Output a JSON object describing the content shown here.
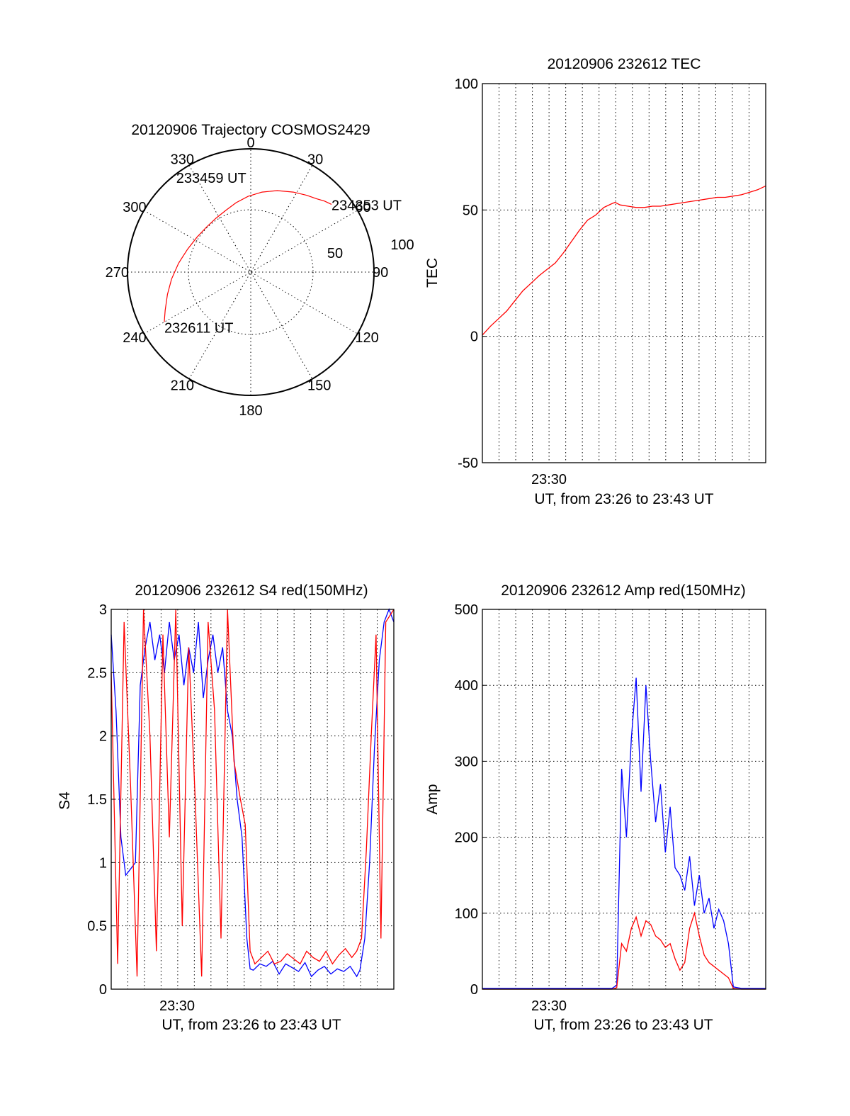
{
  "chart_data": [
    {
      "id": "polar",
      "type": "scatter",
      "title": "20120906 Trajectory COSMOS2429",
      "azimuth_ticks": [
        "0",
        "30",
        "60",
        "90",
        "120",
        "150",
        "180",
        "210",
        "240",
        "270",
        "300",
        "330"
      ],
      "elevation_ring_labels": [
        "50",
        "100"
      ],
      "rlim": [
        0,
        100
      ],
      "series": [
        {
          "color": "#ff0000",
          "azimuth_deg": [
            240.0,
            246.0,
            255.0,
            265.0,
            277.0,
            290.0,
            303.0,
            315.0,
            327.0,
            338.0,
            348.0,
            358.0,
            8.0,
            18.0,
            28.0,
            36.0,
            42.0,
            46.0,
            50.0
          ],
          "radius": [
            81.0,
            76.0,
            70.0,
            64.5,
            59.0,
            54.5,
            52.0,
            51.2,
            52.0,
            54.0,
            57.5,
            61.5,
            65.5,
            69.5,
            73.5,
            77.0,
            80.0,
            83.0,
            85.5
          ]
        }
      ],
      "annotations": [
        {
          "text": "234353 UT",
          "azimuth_deg": 50.0,
          "radius": 85.5
        },
        {
          "text": "233459 UT",
          "azimuth_deg": 327.0,
          "radius": 52.0
        },
        {
          "text": "232611 UT",
          "azimuth_deg": 240.0,
          "radius": 81.0
        }
      ],
      "grid": true
    },
    {
      "id": "tec",
      "type": "line",
      "title": "20120906 232612 TEC",
      "xlabel": "UT, from 23:26 to 23:43 UT",
      "ylabel": "TEC",
      "xlim": [
        0,
        17.5
      ],
      "x_tick_label": "23:30",
      "ylim": [
        -50,
        100
      ],
      "yticks": [
        "-50",
        "0",
        "50",
        "100"
      ],
      "grid": true,
      "series": [
        {
          "color": "#ff0000",
          "x": [
            0.0,
            0.5,
            1.0,
            1.5,
            2.0,
            2.5,
            3.0,
            3.5,
            4.0,
            4.5,
            5.0,
            5.5,
            6.0,
            6.5,
            7.0,
            7.5,
            8.0,
            8.2,
            8.5,
            9.0,
            9.5,
            10.0,
            10.5,
            11.0,
            11.5,
            12.0,
            12.5,
            13.0,
            13.5,
            14.0,
            14.5,
            15.0,
            15.5,
            16.0,
            16.5,
            17.0,
            17.5
          ],
          "y": [
            0.5,
            4.0,
            7.0,
            10.0,
            14.0,
            18.0,
            21.0,
            24.0,
            26.5,
            29.0,
            33.0,
            37.5,
            42.0,
            46.0,
            48.0,
            51.0,
            52.5,
            53.0,
            52.0,
            51.5,
            51.0,
            51.0,
            51.5,
            51.5,
            52.0,
            52.5,
            53.0,
            53.5,
            54.0,
            54.5,
            55.0,
            55.0,
            55.5,
            56.0,
            57.0,
            58.0,
            59.5
          ]
        }
      ]
    },
    {
      "id": "s4",
      "type": "line",
      "title": "20120906 232612 S4 red(150MHz)",
      "xlabel": "UT, from 23:26 to 23:43 UT",
      "ylabel": "S4",
      "xlim": [
        0,
        17.5
      ],
      "x_tick_label": "23:30",
      "ylim": [
        0,
        3
      ],
      "yticks": [
        "0",
        "0.5",
        "1",
        "1.5",
        "2",
        "2.5",
        "3"
      ],
      "grid": true,
      "series": [
        {
          "color": "#0000ff",
          "x": [
            0.0,
            0.3,
            0.6,
            0.9,
            1.2,
            1.5,
            1.8,
            2.1,
            2.4,
            2.7,
            3.0,
            3.3,
            3.6,
            3.9,
            4.2,
            4.5,
            4.8,
            5.1,
            5.4,
            5.7,
            6.0,
            6.3,
            6.6,
            6.9,
            7.2,
            7.5,
            7.8,
            8.1,
            8.4,
            8.6,
            8.8,
            9.2,
            9.6,
            10.0,
            10.4,
            10.8,
            11.2,
            11.6,
            12.0,
            12.4,
            12.8,
            13.2,
            13.6,
            14.0,
            14.4,
            14.8,
            15.2,
            15.4,
            15.7,
            16.0,
            16.3,
            16.6,
            16.9,
            17.2,
            17.5
          ],
          "y": [
            2.8,
            2.2,
            1.2,
            0.9,
            0.95,
            1.0,
            2.4,
            2.7,
            2.9,
            2.6,
            2.8,
            2.5,
            2.9,
            2.6,
            2.8,
            2.4,
            2.7,
            2.5,
            2.9,
            2.3,
            2.6,
            2.8,
            2.5,
            2.7,
            2.2,
            2.0,
            1.5,
            1.2,
            0.4,
            0.16,
            0.15,
            0.2,
            0.18,
            0.22,
            0.12,
            0.2,
            0.17,
            0.14,
            0.21,
            0.1,
            0.15,
            0.18,
            0.12,
            0.16,
            0.14,
            0.18,
            0.1,
            0.15,
            0.4,
            1.0,
            1.9,
            2.6,
            2.9,
            3.0,
            2.9
          ]
        },
        {
          "color": "#ff0000",
          "x": [
            0.0,
            0.4,
            0.8,
            1.2,
            1.6,
            2.0,
            2.4,
            2.8,
            3.2,
            3.6,
            4.0,
            4.4,
            4.8,
            5.2,
            5.6,
            6.0,
            6.4,
            6.8,
            7.2,
            7.6,
            8.0,
            8.3,
            8.6,
            8.9,
            9.3,
            9.7,
            10.1,
            10.5,
            10.9,
            11.3,
            11.7,
            12.1,
            12.5,
            12.9,
            13.3,
            13.7,
            14.1,
            14.5,
            14.9,
            15.2,
            15.5,
            15.8,
            16.1,
            16.4,
            16.7,
            17.0,
            17.5
          ],
          "y": [
            2.5,
            0.2,
            2.9,
            1.6,
            0.1,
            3.0,
            2.0,
            0.3,
            2.8,
            1.2,
            3.0,
            0.5,
            2.7,
            1.5,
            0.1,
            2.9,
            2.2,
            0.4,
            3.0,
            1.8,
            1.5,
            1.3,
            0.3,
            0.2,
            0.25,
            0.3,
            0.2,
            0.22,
            0.28,
            0.24,
            0.2,
            0.3,
            0.25,
            0.22,
            0.3,
            0.2,
            0.27,
            0.32,
            0.25,
            0.3,
            0.4,
            1.1,
            2.0,
            2.8,
            0.4,
            2.9,
            3.0
          ]
        }
      ]
    },
    {
      "id": "amp",
      "type": "line",
      "title": "20120906 232612 Amp red(150MHz)",
      "xlabel": "UT, from 23:26 to 23:43 UT",
      "ylabel": "Amp",
      "xlim": [
        0,
        17.5
      ],
      "x_tick_label": "23:30",
      "ylim": [
        0,
        500
      ],
      "yticks": [
        "0",
        "100",
        "200",
        "300",
        "400",
        "500"
      ],
      "grid": true,
      "series": [
        {
          "color": "#0000ff",
          "x": [
            0.0,
            2.0,
            4.0,
            6.0,
            8.0,
            8.3,
            8.6,
            8.9,
            9.2,
            9.5,
            9.8,
            10.1,
            10.4,
            10.7,
            11.0,
            11.3,
            11.6,
            11.9,
            12.2,
            12.5,
            12.8,
            13.1,
            13.4,
            13.7,
            14.0,
            14.3,
            14.6,
            14.9,
            15.2,
            15.5,
            16.0,
            17.0,
            17.5
          ],
          "y": [
            1,
            1,
            1,
            1,
            1,
            5,
            290,
            200,
            330,
            410,
            260,
            400,
            300,
            220,
            270,
            180,
            240,
            160,
            150,
            130,
            175,
            110,
            150,
            100,
            120,
            80,
            105,
            90,
            60,
            3,
            1,
            1,
            1
          ]
        },
        {
          "color": "#ff0000",
          "x": [
            0.0,
            2.0,
            4.0,
            6.0,
            8.0,
            8.3,
            8.6,
            8.9,
            9.2,
            9.5,
            9.8,
            10.1,
            10.4,
            10.7,
            11.0,
            11.3,
            11.6,
            11.9,
            12.2,
            12.5,
            12.8,
            13.1,
            13.4,
            13.7,
            14.0,
            14.3,
            14.6,
            14.9,
            15.2,
            15.5,
            16.0,
            17.0,
            17.5
          ],
          "y": [
            0,
            0,
            0,
            0,
            0,
            2,
            60,
            50,
            80,
            95,
            70,
            90,
            85,
            70,
            65,
            55,
            60,
            40,
            25,
            35,
            80,
            100,
            70,
            45,
            35,
            30,
            25,
            20,
            15,
            1,
            0,
            0,
            0
          ]
        }
      ]
    }
  ]
}
